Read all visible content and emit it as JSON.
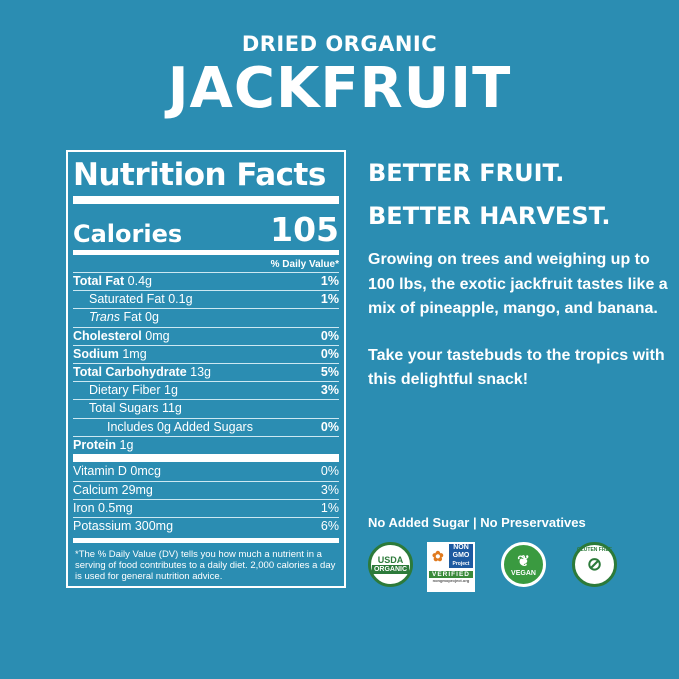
{
  "header": {
    "subtitle": "DRIED ORGANIC",
    "title": "JACKFRUIT"
  },
  "label": {
    "title": "Nutrition Facts",
    "calories_label": "Calories",
    "calories_value": "105",
    "dv_header": "% Daily Value*",
    "rows": [
      {
        "name": "Total Fat",
        "amount": "0.4g",
        "dv": "1%"
      },
      {
        "name": "Saturated Fat 0.1g",
        "dv": "1%"
      },
      {
        "name": "Trans",
        "amount": "Fat 0g",
        "dv": ""
      },
      {
        "name": "Cholesterol",
        "amount": "0mg",
        "dv": "0%"
      },
      {
        "name": "Sodium",
        "amount": "1mg",
        "dv": "0%"
      },
      {
        "name": "Total Carbohydrate",
        "amount": "13g",
        "dv": "5%"
      },
      {
        "name": "Dietary Fiber 1g",
        "dv": "3%"
      },
      {
        "name": "Total Sugars 11g",
        "dv": ""
      },
      {
        "name": "Includes 0g Added Sugars",
        "dv": "0%"
      },
      {
        "name": "Protein",
        "amount": "1g",
        "dv": ""
      }
    ],
    "vitamins": [
      {
        "name": "Vitamin D 0mcg",
        "dv": "0%"
      },
      {
        "name": "Calcium 29mg",
        "dv": "3%"
      },
      {
        "name": "Iron 0.5mg",
        "dv": "1%"
      },
      {
        "name": "Potassium 300mg",
        "dv": "6%"
      }
    ],
    "footnote": "*The % Daily Value (DV) tells you how much a nutrient in a serving of food contributes to a daily diet. 2,000 calories a day is used for general nutrition advice."
  },
  "right": {
    "headline1": "BETTER FRUIT.",
    "headline2": "BETTER HARVEST.",
    "para1": "Growing on trees and weighing up to 100 lbs, the exotic jackfruit tastes like a mix of pineapple, mango, and banana.",
    "para2": "Take your tastebuds to the tropics with this delightful snack!",
    "claims": "No Added Sugar | No Preservatives"
  },
  "badges": {
    "usda": [
      "USDA",
      "ORGANIC"
    ],
    "nongmo": [
      "NON",
      "GMO",
      "Project",
      "VERIFIED",
      "nongmoproject.org"
    ],
    "vegan": "VEGAN",
    "gluten": "GLUTEN FREE"
  },
  "colors": {
    "background": "#2b8db2",
    "text": "#ffffff",
    "badge_green": "#2c7a3a"
  }
}
